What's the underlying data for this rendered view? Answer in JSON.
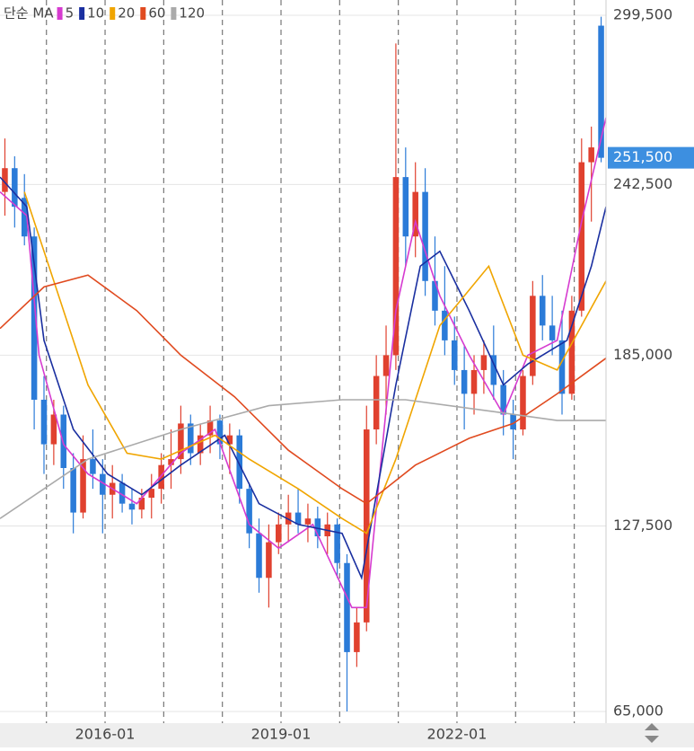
{
  "chart_data": {
    "type": "candlestick",
    "legend_title": "단순 MA",
    "ylim": [
      65000,
      299500
    ],
    "yticks": [
      {
        "value": 65000,
        "label": "65,000"
      },
      {
        "value": 127500,
        "label": "127,500"
      },
      {
        "value": 185000,
        "label": "185,000"
      },
      {
        "value": 242500,
        "label": "242,500"
      },
      {
        "value": 299500,
        "label": "299,500"
      }
    ],
    "last_price": {
      "value": 251500,
      "label": "251,500"
    },
    "xlim": [
      0,
      124
    ],
    "xgrid": [
      9.5,
      21.5,
      33.5,
      45.5,
      57.5,
      69.5,
      81.5,
      93.5,
      105.5,
      117.5
    ],
    "xticks": [
      {
        "value": 21.5,
        "label": "2016-01"
      },
      {
        "value": 57.5,
        "label": "2019-01"
      },
      {
        "value": 93.5,
        "label": "2022-01"
      }
    ],
    "up_color": "#e0412f",
    "down_color": "#2b7bd8",
    "candles": {
      "x": [
        1,
        3,
        5,
        7,
        9,
        11,
        13,
        15,
        17,
        19,
        21,
        23,
        25,
        27,
        29,
        31,
        33,
        35,
        37,
        39,
        41,
        43,
        45,
        47,
        49,
        51,
        53,
        55,
        57,
        59,
        61,
        63,
        65,
        67,
        69,
        71,
        73,
        75,
        77,
        79,
        81,
        83,
        85,
        87,
        89,
        91,
        93,
        95,
        97,
        99,
        101,
        103,
        105,
        107,
        109,
        111,
        113,
        115,
        117,
        119,
        121,
        123
      ],
      "open": [
        240000,
        248000,
        238000,
        225000,
        170000,
        155000,
        165000,
        147000,
        132000,
        150000,
        145000,
        138000,
        142000,
        135000,
        133000,
        137000,
        140000,
        148000,
        150000,
        162000,
        152000,
        158000,
        163000,
        155000,
        158000,
        140000,
        125000,
        110000,
        122000,
        128000,
        132000,
        128000,
        130000,
        124000,
        128000,
        115000,
        85000,
        95000,
        160000,
        178000,
        185000,
        245000,
        225000,
        240000,
        210000,
        200000,
        190000,
        180000,
        172000,
        180000,
        185000,
        175000,
        165000,
        160000,
        178000,
        205000,
        195000,
        190000,
        172000,
        200000,
        250000,
        296000
      ],
      "high": [
        258000,
        252000,
        246000,
        228000,
        178000,
        170000,
        168000,
        152000,
        158000,
        160000,
        150000,
        148000,
        145000,
        140000,
        140000,
        145000,
        152000,
        160000,
        168000,
        165000,
        162000,
        168000,
        165000,
        162000,
        160000,
        142000,
        130000,
        128000,
        132000,
        138000,
        140000,
        135000,
        134000,
        132000,
        130000,
        118000,
        100000,
        168000,
        185000,
        195000,
        290000,
        255000,
        250000,
        248000,
        225000,
        215000,
        198000,
        188000,
        185000,
        190000,
        195000,
        180000,
        170000,
        180000,
        210000,
        212000,
        205000,
        200000,
        205000,
        258000,
        262000,
        299000
      ],
      "low": [
        232000,
        228000,
        222000,
        160000,
        145000,
        148000,
        140000,
        125000,
        130000,
        140000,
        125000,
        130000,
        132000,
        128000,
        130000,
        130000,
        135000,
        140000,
        145000,
        148000,
        148000,
        152000,
        150000,
        145000,
        135000,
        120000,
        105000,
        100000,
        118000,
        122000,
        125000,
        122000,
        120000,
        118000,
        110000,
        65000,
        80000,
        92000,
        155000,
        165000,
        180000,
        215000,
        218000,
        205000,
        195000,
        185000,
        175000,
        160000,
        165000,
        172000,
        170000,
        158000,
        150000,
        158000,
        175000,
        190000,
        185000,
        165000,
        170000,
        198000,
        230000,
        250000
      ],
      "close": [
        248000,
        235000,
        225000,
        170000,
        155000,
        165000,
        147000,
        132000,
        150000,
        145000,
        138000,
        142000,
        135000,
        133000,
        137000,
        140000,
        148000,
        150000,
        162000,
        152000,
        158000,
        163000,
        155000,
        158000,
        140000,
        125000,
        110000,
        122000,
        128000,
        132000,
        128000,
        130000,
        124000,
        128000,
        115000,
        85000,
        95000,
        160000,
        178000,
        185000,
        245000,
        225000,
        240000,
        210000,
        200000,
        190000,
        180000,
        172000,
        180000,
        185000,
        175000,
        165000,
        160000,
        178000,
        205000,
        195000,
        190000,
        172000,
        200000,
        250000,
        255000,
        251500
      ]
    },
    "ma": [
      {
        "name": "5",
        "color": "#d63bd0",
        "x": [
          0,
          5.5,
          8,
          13,
          18,
          28,
          37,
          44,
          51,
          57,
          64,
          72,
          75,
          81,
          85,
          90,
          96,
          103,
          108,
          114,
          119,
          124
        ],
        "values": [
          240000,
          232000,
          185000,
          155000,
          145000,
          135000,
          152000,
          160000,
          128000,
          120000,
          128000,
          100000,
          100000,
          200000,
          230000,
          205000,
          185000,
          165000,
          185000,
          190000,
          230000,
          265000
        ]
      },
      {
        "name": "10",
        "color": "#1a2fa0",
        "x": [
          0,
          5.5,
          9,
          15,
          22,
          29,
          37,
          46,
          53,
          61,
          70,
          74,
          81,
          86,
          90,
          96,
          103,
          108,
          116,
          121,
          124
        ],
        "values": [
          245000,
          235000,
          190000,
          160000,
          145000,
          138000,
          148000,
          158000,
          135000,
          128000,
          125000,
          110000,
          175000,
          215000,
          220000,
          200000,
          175000,
          182000,
          190000,
          215000,
          235000
        ]
      },
      {
        "name": "20",
        "color": "#f0a500",
        "x": [
          5,
          11,
          18,
          26,
          33,
          44,
          51,
          61,
          70,
          75,
          81,
          90,
          100,
          107,
          114,
          119,
          124
        ],
        "values": [
          240000,
          210000,
          175000,
          152000,
          150000,
          158000,
          150000,
          140000,
          130000,
          125000,
          150000,
          195000,
          215000,
          185000,
          180000,
          195000,
          210000
        ]
      },
      {
        "name": "60",
        "color": "#e04a1f",
        "x": [
          0,
          9,
          18,
          28,
          37,
          48,
          59,
          70,
          75,
          85,
          96,
          105,
          114,
          124
        ],
        "values": [
          194000,
          208000,
          212000,
          200000,
          185000,
          171000,
          153000,
          140000,
          135000,
          148000,
          157000,
          162000,
          172000,
          184000
        ]
      },
      {
        "name": "120",
        "color": "#aaaaaa",
        "x": [
          0,
          18,
          37,
          55,
          70,
          83,
          101,
          114,
          124
        ],
        "values": [
          130000,
          150000,
          160000,
          168000,
          170000,
          170000,
          166000,
          163000,
          163000
        ]
      }
    ]
  }
}
